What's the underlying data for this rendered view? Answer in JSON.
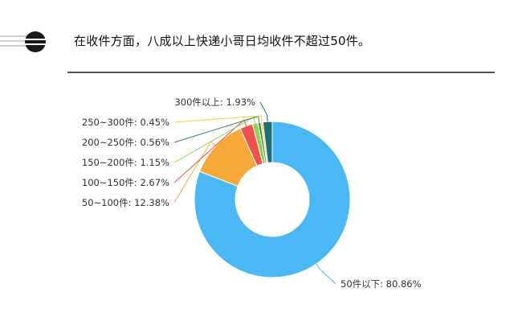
{
  "header": {
    "title": "在收件方面，八成以上快递小哥日均收件不超过50件。",
    "bullet_icon": "circle-bullet-icon"
  },
  "chart_data": {
    "type": "pie",
    "donut": true,
    "title": "",
    "slices": [
      {
        "label": "50件以下",
        "value": 80.86,
        "display": "50件以下: 80.86%",
        "color": "#4ab8f5"
      },
      {
        "label": "50~100件",
        "value": 12.38,
        "display": "50~100件: 12.38%",
        "color": "#f5a938"
      },
      {
        "label": "100~150件",
        "value": 2.67,
        "display": "100~150件: 2.67%",
        "color": "#f05050"
      },
      {
        "label": "150~200件",
        "value": 1.15,
        "display": "150~200件: 1.15%",
        "color": "#8fd14f"
      },
      {
        "label": "200~250件",
        "value": 0.56,
        "display": "200~250件: 0.56%",
        "color": "#2e8b57"
      },
      {
        "label": "250~300件",
        "value": 0.45,
        "display": "250~300件: 0.45%",
        "color": "#f4d03f"
      },
      {
        "label": "300件以上",
        "value": 1.93,
        "display": "300件以上: 1.93%",
        "color": "#1f6f7a"
      }
    ]
  }
}
